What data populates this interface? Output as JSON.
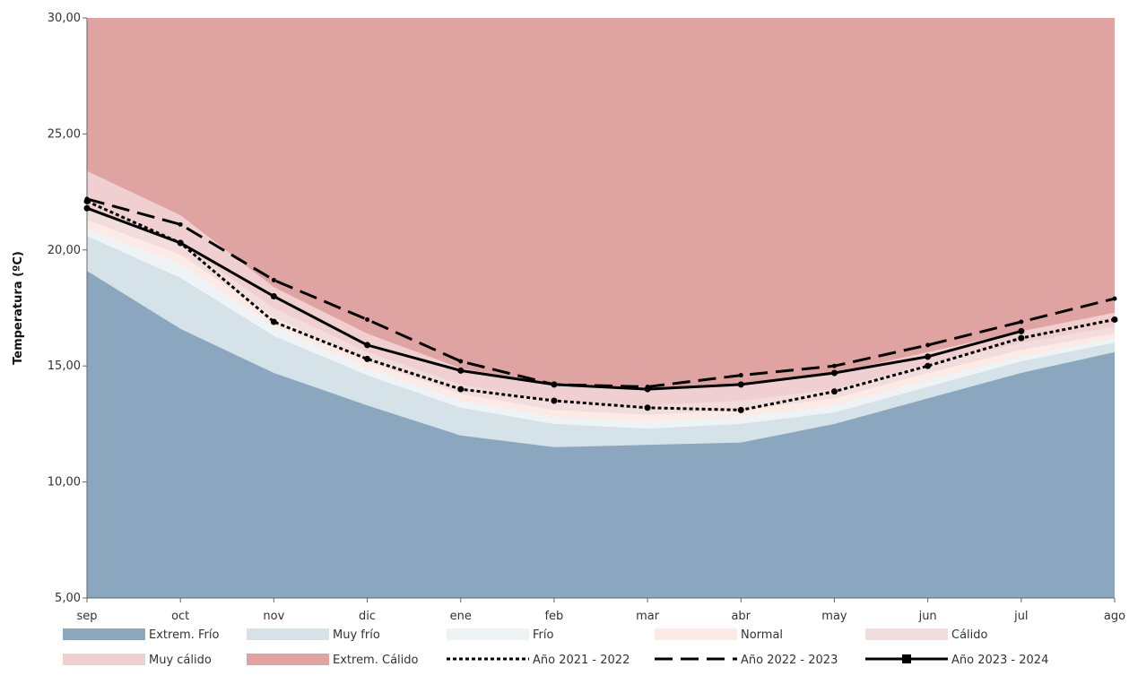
{
  "chart_data": {
    "type": "area",
    "ylabel": "Temperatura (ºC)",
    "ylim": [
      5,
      30
    ],
    "yticks": [
      "5,00",
      "10,00",
      "15,00",
      "20,00",
      "25,00",
      "30,00"
    ],
    "ytick_values": [
      5,
      10,
      15,
      20,
      25,
      30
    ],
    "categories": [
      "sep",
      "oct",
      "nov",
      "dic",
      "ene",
      "feb",
      "mar",
      "abr",
      "may",
      "jun",
      "jul",
      "ago"
    ],
    "bands": [
      {
        "name": "Extrem. Frío",
        "color": "#8ba7c0",
        "upper": [
          19.1,
          16.6,
          14.7,
          13.3,
          12.0,
          11.5,
          11.6,
          11.7,
          12.5,
          13.6,
          14.7,
          15.6
        ]
      },
      {
        "name": "Muy frío",
        "color": "#d5e3e8",
        "upper": [
          20.6,
          18.8,
          16.3,
          14.6,
          13.2,
          12.5,
          12.3,
          12.5,
          13.0,
          14.1,
          15.2,
          16.0
        ]
      },
      {
        "name": "Frío",
        "color": "#eef4f6",
        "upper": [
          20.9,
          19.4,
          16.7,
          14.9,
          13.5,
          12.8,
          12.6,
          12.8,
          13.3,
          14.4,
          15.4,
          16.2
        ]
      },
      {
        "name": "Normal",
        "color": "#fbebe4",
        "upper": [
          21.3,
          19.8,
          17.1,
          15.2,
          13.8,
          13.1,
          12.9,
          13.1,
          13.6,
          14.7,
          15.7,
          16.4
        ]
      },
      {
        "name": "Cálido",
        "color": "#f3dcdc",
        "upper": [
          21.8,
          20.3,
          17.5,
          15.6,
          14.2,
          13.5,
          13.3,
          13.5,
          14.0,
          15.1,
          16.0,
          16.7
        ]
      },
      {
        "name": "Muy cálido",
        "color": "#efcfcf",
        "upper": [
          23.4,
          21.5,
          18.4,
          16.4,
          14.9,
          14.2,
          14.0,
          14.2,
          14.7,
          15.6,
          16.5,
          17.3
        ]
      },
      {
        "name": "Extrem. Cálido",
        "color": "#dfa3a2",
        "upper": [
          30,
          30,
          30,
          30,
          30,
          30,
          30,
          30,
          30,
          30,
          30,
          30
        ]
      }
    ],
    "series": [
      {
        "name": "Año 2021 - 2022",
        "style": "dotted",
        "values": [
          22.1,
          20.3,
          16.9,
          15.3,
          14.0,
          13.5,
          13.2,
          13.1,
          13.9,
          15.0,
          16.2,
          17.0
        ]
      },
      {
        "name": "Año 2022 - 2023",
        "style": "dashed",
        "values": [
          22.2,
          21.1,
          18.7,
          17.0,
          15.2,
          14.2,
          14.1,
          14.6,
          15.0,
          15.9,
          16.9,
          17.9
        ]
      },
      {
        "name": "Año 2023 - 2024",
        "style": "solid",
        "values": [
          21.8,
          20.3,
          18.0,
          15.9,
          14.8,
          14.2,
          14.0,
          14.2,
          14.7,
          15.4,
          16.5,
          null
        ]
      }
    ],
    "legend_position": "bottom",
    "grid": false
  }
}
